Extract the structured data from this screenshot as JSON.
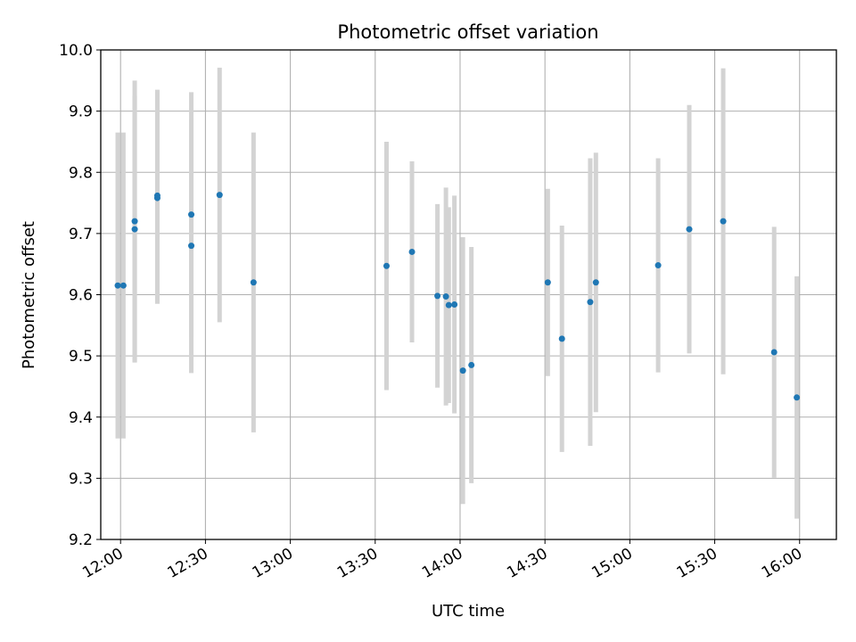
{
  "chart_data": {
    "type": "scatter",
    "title": "Photometric offset variation",
    "xlabel": "UTC time",
    "ylabel": "Photometric offset",
    "xlim": [
      "11:53",
      "16:13"
    ],
    "ylim": [
      9.2,
      10.0
    ],
    "grid": true,
    "x_ticks": [
      "12:00",
      "12:30",
      "13:00",
      "13:30",
      "14:00",
      "14:30",
      "15:00",
      "15:30",
      "16:00"
    ],
    "y_ticks": [
      "9.2",
      "9.3",
      "9.4",
      "9.5",
      "9.6",
      "9.7",
      "9.8",
      "9.9",
      "10.0"
    ],
    "colors": {
      "points": "#1f77b4",
      "errorbars": "#d3d3d3",
      "grid": "#b0b0b0"
    },
    "points": [
      {
        "x": "11:59",
        "y": 9.615,
        "err": 0.25
      },
      {
        "x": "12:01",
        "y": 9.615,
        "err": 0.25
      },
      {
        "x": "12:05",
        "y": 9.72,
        "err": 0.23
      },
      {
        "x": "12:05",
        "y": 9.707,
        "err": 0.218
      },
      {
        "x": "12:13",
        "y": 9.762,
        "err": 0.173
      },
      {
        "x": "12:13",
        "y": 9.758,
        "err": 0.173
      },
      {
        "x": "12:25",
        "y": 9.731,
        "err": 0.2
      },
      {
        "x": "12:25",
        "y": 9.68,
        "err": 0.208
      },
      {
        "x": "12:35",
        "y": 9.763,
        "err": 0.208
      },
      {
        "x": "12:47",
        "y": 9.62,
        "err": 0.245
      },
      {
        "x": "13:34",
        "y": 9.647,
        "err": 0.203
      },
      {
        "x": "13:43",
        "y": 9.67,
        "err": 0.148
      },
      {
        "x": "13:52",
        "y": 9.598,
        "err": 0.15
      },
      {
        "x": "13:55",
        "y": 9.597,
        "err": 0.178
      },
      {
        "x": "13:56",
        "y": 9.583,
        "err": 0.16
      },
      {
        "x": "13:58",
        "y": 9.584,
        "err": 0.178
      },
      {
        "x": "14:01",
        "y": 9.476,
        "err": 0.218
      },
      {
        "x": "14:04",
        "y": 9.485,
        "err": 0.193
      },
      {
        "x": "14:31",
        "y": 9.62,
        "err": 0.153
      },
      {
        "x": "14:36",
        "y": 9.528,
        "err": 0.185
      },
      {
        "x": "14:46",
        "y": 9.588,
        "err": 0.235
      },
      {
        "x": "14:48",
        "y": 9.62,
        "err": 0.212
      },
      {
        "x": "15:10",
        "y": 9.648,
        "err": 0.175
      },
      {
        "x": "15:21",
        "y": 9.707,
        "err": 0.203
      },
      {
        "x": "15:33",
        "y": 9.72,
        "err": 0.25
      },
      {
        "x": "15:51",
        "y": 9.506,
        "err": 0.205
      },
      {
        "x": "15:59",
        "y": 9.432,
        "err": 0.198
      }
    ]
  }
}
